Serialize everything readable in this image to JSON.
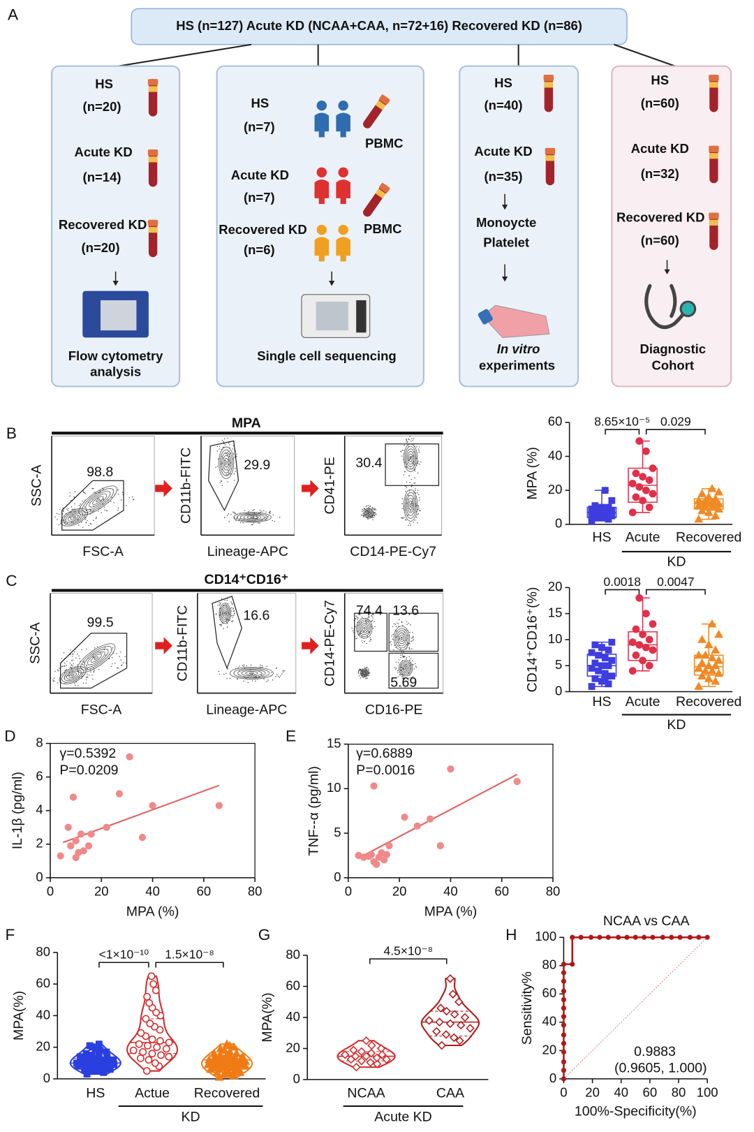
{
  "panel_labels": [
    "A",
    "B",
    "C",
    "D",
    "E",
    "F",
    "G",
    "H"
  ],
  "panel_a": {
    "header": "HS (n=127) Acute KD (NCAA+CAA, n=72+16) Recovered KD (n=86)",
    "cohorts": [
      {
        "lines": [
          "HS",
          "(n=20)",
          "Acute KD",
          "(n=14)",
          "Recovered KD",
          "(n=20)"
        ],
        "extras": [],
        "footer": [
          "Flow cytometry",
          "analysis"
        ]
      },
      {
        "lines": [
          "HS",
          "(n=7)",
          "Acute KD",
          "(n=7)",
          "Recovered KD",
          "(n=6)"
        ],
        "extras": [
          "PBMC",
          "PBMC"
        ],
        "footer": [
          "Single cell sequencing"
        ]
      },
      {
        "lines": [
          "HS",
          "(n=40)",
          "Acute KD",
          "(n=35)",
          "Monoycte",
          "Platelet"
        ],
        "extras": [],
        "footer": [
          "In vitro",
          "experiments"
        ]
      },
      {
        "lines": [
          "HS",
          "(n=60)",
          "Acute KD",
          "(n=32)",
          "Recovered KD",
          "(n=60)"
        ],
        "extras": [],
        "footer": [
          "Diagnostic",
          "Cohort"
        ]
      }
    ]
  },
  "flow": [
    {
      "title": "MPA",
      "plots": [
        {
          "y_label": "SSC-A",
          "x_label": "FSC-A",
          "gates": [
            98.8
          ]
        },
        {
          "y_label": "CD11b-FITC",
          "x_label": "Lineage-APC",
          "gates": [
            29.9
          ]
        },
        {
          "y_label": "CD41-PE",
          "x_label": "CD14-PE-Cy7",
          "gates": [
            30.4
          ]
        }
      ]
    },
    {
      "title": "CD14⁺CD16⁺",
      "plots": [
        {
          "y_label": "SSC-A",
          "x_label": "FSC-A",
          "gates": [
            99.5
          ]
        },
        {
          "y_label": "CD11b-FITC",
          "x_label": "Lineage-APC",
          "gates": [
            16.6
          ]
        },
        {
          "y_label": "CD14-PE-Cy7",
          "x_label": "CD16-PE",
          "gates": [
            74.4,
            13.6,
            5.69
          ]
        }
      ]
    }
  ],
  "chart_data": [
    {
      "type": "box",
      "y_label": "MPA (%)",
      "categories": [
        "HS",
        "Acute",
        "Recovered"
      ],
      "group_label": "KD",
      "ylim": [
        0,
        60
      ],
      "yticks": [
        0,
        20,
        40,
        60
      ],
      "annotations": [
        "8.65×10⁻⁵",
        "0.029"
      ],
      "boxes": [
        {
          "color": "#3d3de0",
          "marker": "square",
          "min": 2,
          "q1": 4,
          "median": 7,
          "q3": 10,
          "max": 20,
          "points": [
            2,
            3,
            4,
            4,
            5,
            5,
            6,
            6,
            7,
            7,
            7,
            8,
            8,
            9,
            9,
            10,
            10,
            11,
            14,
            20
          ]
        },
        {
          "color": "#e0304a",
          "marker": "circle",
          "min": 7,
          "q1": 13,
          "median": 23,
          "q3": 33,
          "max": 49,
          "points": [
            7,
            10,
            14,
            16,
            18,
            20,
            22,
            24,
            26,
            28,
            30,
            33,
            43,
            49
          ]
        },
        {
          "color": "#f08a24",
          "marker": "triangle",
          "min": 3,
          "q1": 9,
          "median": 12,
          "q3": 15,
          "max": 21,
          "points": [
            3,
            5,
            7,
            8,
            9,
            10,
            10,
            11,
            11,
            12,
            12,
            12,
            13,
            14,
            14,
            15,
            16,
            18,
            19,
            21
          ]
        }
      ]
    },
    {
      "type": "box",
      "y_label": "CD14⁺CD16⁺(%)",
      "categories": [
        "HS",
        "Acute",
        "Recovered"
      ],
      "group_label": "KD",
      "ylim": [
        0,
        20
      ],
      "yticks": [
        0,
        5,
        10,
        15,
        20
      ],
      "annotations": [
        "0.0018",
        "0.0047"
      ],
      "boxes": [
        {
          "color": "#3d3de0",
          "marker": "square",
          "min": 1,
          "q1": 3,
          "median": 5,
          "q3": 7.2,
          "max": 9.5,
          "points": [
            1,
            1.5,
            2,
            2.5,
            3,
            3.5,
            4,
            4.5,
            5,
            5,
            5.5,
            6,
            6.5,
            7,
            7.5,
            8,
            8.5,
            9,
            9.5,
            2.8
          ]
        },
        {
          "color": "#e0304a",
          "marker": "circle",
          "min": 4,
          "q1": 6,
          "median": 9,
          "q3": 11.5,
          "max": 18,
          "points": [
            4,
            5,
            6,
            7,
            8,
            8.5,
            9,
            9.5,
            10,
            11,
            12,
            13,
            15,
            18
          ]
        },
        {
          "color": "#f08a24",
          "marker": "triangle",
          "min": 1,
          "q1": 3.2,
          "median": 4.8,
          "q3": 7,
          "max": 13,
          "points": [
            1,
            2,
            2.5,
            3,
            3.5,
            4,
            4,
            4.5,
            5,
            5,
            5.5,
            6,
            6.5,
            7,
            7,
            8,
            9,
            10,
            11,
            13
          ]
        }
      ]
    },
    {
      "type": "scatter",
      "x_label": "MPA (%)",
      "y_label": "IL-1β (pg/ml)",
      "color": "#f08a8a",
      "annotations": [
        "γ=0.5392",
        "P=0.0209"
      ],
      "x": [
        4,
        7,
        8,
        9,
        10,
        10,
        11,
        12,
        13,
        15,
        16,
        22,
        27,
        31,
        36,
        40,
        66
      ],
      "values": [
        1.3,
        3,
        1.9,
        4.8,
        2.2,
        1.2,
        1.5,
        2.6,
        1.6,
        1.9,
        2.6,
        3,
        5,
        7.2,
        2.4,
        4.3,
        4.3
      ],
      "fit": {
        "x": [
          5,
          66
        ],
        "values": [
          2.1,
          5.5
        ],
        "color": "#e06060"
      },
      "xlim": [
        0,
        80
      ],
      "xticks": [
        0,
        20,
        40,
        60,
        80
      ],
      "ylim": [
        0,
        8
      ],
      "yticks": [
        0,
        2,
        4,
        6,
        8
      ]
    },
    {
      "type": "scatter",
      "x_label": "MPA (%)",
      "y_label": "TNF--α (pg/ml)",
      "color": "#f08a8a",
      "annotations": [
        "γ=0.6889",
        "P=0.0016"
      ],
      "x": [
        4,
        6,
        8,
        9,
        10,
        10,
        11,
        12,
        13,
        14,
        15,
        16,
        22,
        27,
        32,
        36,
        40,
        66
      ],
      "values": [
        2.5,
        2.3,
        2.4,
        2.6,
        1.8,
        10.3,
        1.5,
        2.3,
        2.8,
        2,
        2.6,
        3.6,
        6.8,
        5.8,
        6.6,
        3.6,
        12.2,
        10.8
      ],
      "fit": {
        "x": [
          4,
          66
        ],
        "values": [
          2.2,
          11.6
        ],
        "color": "#e06060"
      },
      "xlim": [
        0,
        80
      ],
      "xticks": [
        0,
        20,
        40,
        60,
        80
      ],
      "ylim": [
        0,
        15
      ],
      "yticks": [
        0,
        5,
        10,
        15
      ]
    },
    {
      "type": "violin",
      "y_label": "MPA(%)",
      "categories": [
        "HS",
        "Actue",
        "Recovered"
      ],
      "group_label": "KD",
      "ylim": [
        0,
        80
      ],
      "yticks": [
        0,
        20,
        40,
        60,
        80
      ],
      "annotations": [
        "<1×10⁻¹⁰",
        "1.5×10⁻⁸"
      ],
      "violins": [
        {
          "color": "#2a3fe0",
          "marker": "square",
          "q1": 7,
          "median": 10,
          "q3": 13,
          "points": [
            3,
            4,
            5,
            5,
            6,
            6,
            7,
            7,
            7,
            8,
            8,
            8,
            9,
            9,
            9,
            10,
            10,
            10,
            10,
            11,
            11,
            11,
            12,
            12,
            12,
            13,
            13,
            14,
            14,
            15,
            15,
            16,
            17,
            18,
            19,
            20,
            21,
            22
          ]
        },
        {
          "color": "#d42a2a",
          "marker": "circle",
          "q1": 16,
          "median": 23,
          "q3": 38,
          "points": [
            5,
            8,
            10,
            12,
            13,
            14,
            15,
            16,
            17,
            18,
            19,
            20,
            21,
            22,
            23,
            24,
            25,
            27,
            29,
            31,
            33,
            35,
            38,
            40,
            42,
            45,
            48,
            52,
            56,
            60,
            65
          ]
        },
        {
          "color": "#f07b14",
          "marker": "triangle",
          "q1": 7,
          "median": 12,
          "q3": 15,
          "points": [
            1,
            2,
            3,
            3,
            4,
            4,
            5,
            5,
            6,
            6,
            6,
            7,
            7,
            7,
            8,
            8,
            8,
            9,
            9,
            9,
            10,
            10,
            10,
            11,
            11,
            11,
            12,
            12,
            12,
            13,
            13,
            13,
            14,
            14,
            15,
            15,
            16,
            16,
            17,
            18,
            19,
            20,
            21,
            22
          ]
        }
      ]
    },
    {
      "type": "violin",
      "y_label": "MPA(%)",
      "categories": [
        "NCAA",
        "CAA"
      ],
      "group_label": "Acute KD",
      "ylim": [
        0,
        80
      ],
      "yticks": [
        0,
        20,
        40,
        60,
        80
      ],
      "annotations": [
        "4.5×10⁻⁸"
      ],
      "violins": [
        {
          "color": "#d42a2a",
          "marker": "diamond",
          "q1": 12,
          "median": 15,
          "q3": 18,
          "points": [
            8,
            10,
            11,
            12,
            13,
            13,
            14,
            15,
            15,
            16,
            16,
            17,
            18,
            19,
            20,
            22,
            25
          ]
        },
        {
          "color": "#b01818",
          "marker": "diamond",
          "q1": 28,
          "median": 37,
          "q3": 44,
          "points": [
            22,
            25,
            27,
            29,
            31,
            33,
            35,
            36,
            37,
            38,
            40,
            42,
            44,
            46,
            50,
            55,
            65
          ]
        }
      ]
    },
    {
      "type": "roc",
      "title": "NCAA vs CAA",
      "x_label": "100%-Specificity(%)",
      "y_label": "Sensitivity%",
      "color": "#b01818",
      "annotations": [
        "0.9883",
        "(0.9605, 1.000)"
      ],
      "x": [
        0,
        0,
        0,
        0,
        0,
        0,
        0,
        0,
        0,
        0,
        0,
        0,
        0,
        0,
        6,
        6,
        12,
        19,
        25,
        31,
        38,
        44,
        50,
        56,
        62,
        69,
        75,
        81,
        88,
        94,
        100
      ],
      "values": [
        0,
        6,
        12,
        19,
        25,
        31,
        38,
        44,
        50,
        56,
        62,
        69,
        75,
        81,
        81,
        100,
        100,
        100,
        100,
        100,
        100,
        100,
        100,
        100,
        100,
        100,
        100,
        100,
        100,
        100,
        100
      ],
      "xlim": [
        0,
        100
      ],
      "xticks": [
        0,
        20,
        40,
        60,
        80,
        100
      ],
      "ylim": [
        0,
        100
      ],
      "yticks": [
        0,
        20,
        40,
        60,
        80,
        100
      ]
    }
  ]
}
